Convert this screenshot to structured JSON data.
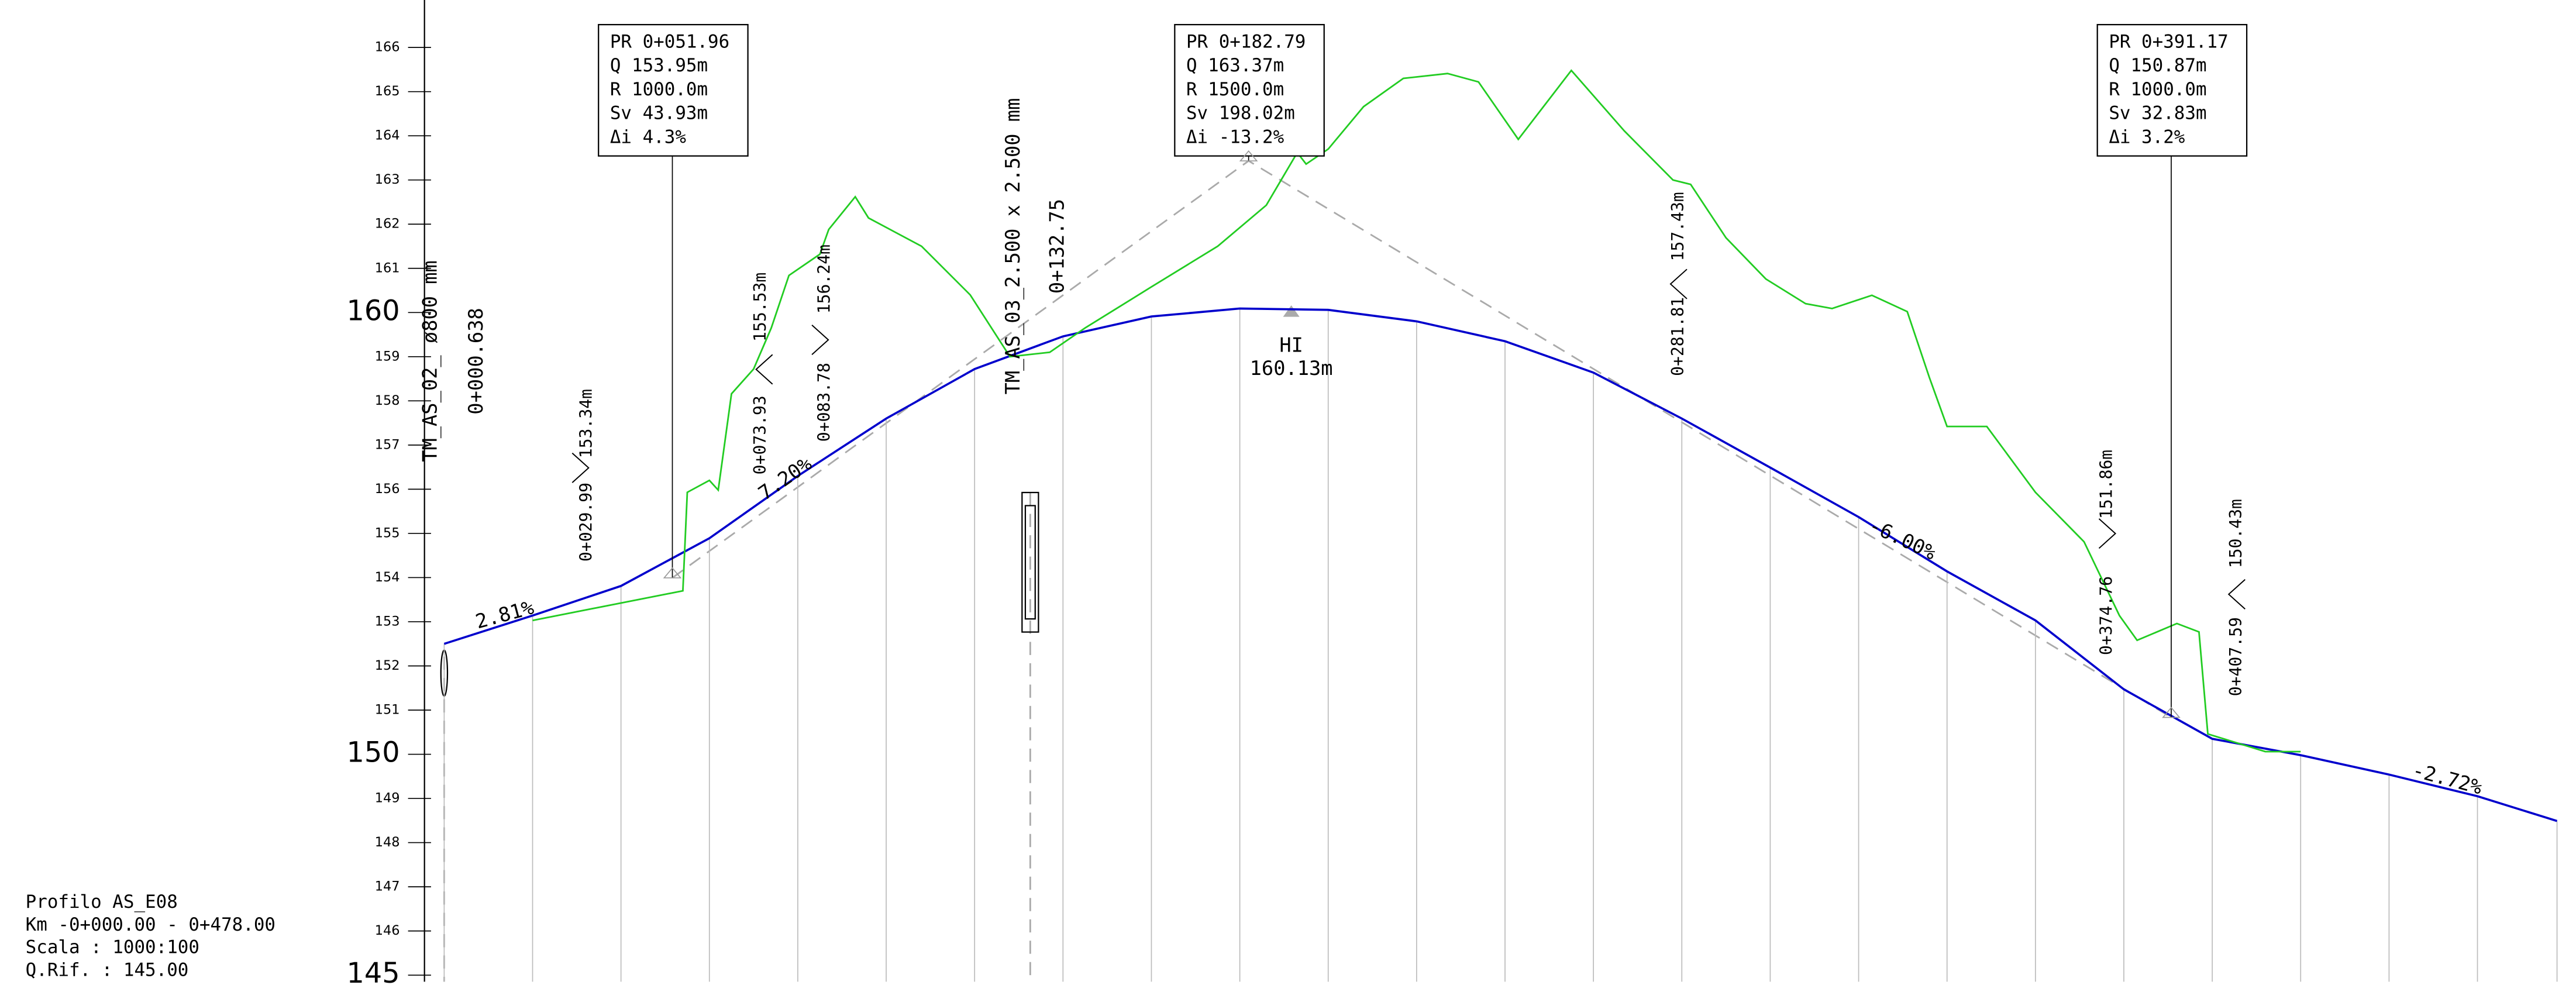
{
  "chart_data": {
    "type": "line",
    "ylim": [
      145,
      167
    ],
    "yticks": [
      145,
      146,
      147,
      148,
      149,
      150,
      151,
      152,
      153,
      154,
      155,
      156,
      157,
      158,
      159,
      160,
      161,
      162,
      163,
      164,
      165,
      166
    ],
    "xlim": [
      0,
      478
    ],
    "series": [
      {
        "name": "profile",
        "color": "#0000cc",
        "x": [
          0,
          20,
          40,
          60,
          80,
          100,
          120,
          140,
          160,
          180,
          200,
          220,
          240,
          260,
          280,
          300,
          320,
          340,
          360,
          380,
          400,
          420,
          440,
          460,
          478
        ],
        "values": [
          152.5,
          153.14,
          153.81,
          154.89,
          156.3,
          157.6,
          158.72,
          159.46,
          159.91,
          160.09,
          160.06,
          159.8,
          159.35,
          158.64,
          157.6,
          156.49,
          155.37,
          154.14,
          153.03,
          151.47,
          150.35,
          149.98,
          149.54,
          149.05,
          148.49
        ]
      },
      {
        "name": "ground",
        "color": "#22cc22",
        "x": [
          20,
          54,
          55,
          60,
          62,
          65,
          70,
          74,
          78,
          85,
          87,
          93,
          96,
          108,
          119,
          128,
          137,
          145,
          160,
          175,
          186,
          193,
          195,
          200,
          208,
          217,
          227,
          234,
          243,
          255,
          267,
          278,
          282,
          290,
          299,
          308,
          314,
          323,
          331,
          336,
          340,
          349,
          360,
          371,
          379,
          383,
          392,
          397,
          399,
          412,
          420
        ],
        "values": [
          153.03,
          153.7,
          155.93,
          156.2,
          155.98,
          158.16,
          158.72,
          159.65,
          160.84,
          161.32,
          161.88,
          162.62,
          162.14,
          161.5,
          160.4,
          159.0,
          159.1,
          159.65,
          160.58,
          161.5,
          162.43,
          163.62,
          163.36,
          163.7,
          164.66,
          165.3,
          165.41,
          165.22,
          163.92,
          165.48,
          164.11,
          163.0,
          162.9,
          161.69,
          160.76,
          160.2,
          160.09,
          160.39,
          160.02,
          158.53,
          157.42,
          157.42,
          155.93,
          154.81,
          153.14,
          152.58,
          152.96,
          152.77,
          150.46,
          150.06,
          150.06
        ]
      }
    ],
    "curves": [
      [
        "PR 0+051.96",
        "Q  153.95m",
        "R  1000.0m",
        "Sv 43.93m",
        "Δi 4.3%"
      ],
      [
        "PR 0+182.79",
        "Q  163.37m",
        "R  1500.0m",
        "Sv 198.02m",
        "Δi -13.2%"
      ],
      [
        "PR 0+391.17",
        "Q  150.87m",
        "R  1000.0m",
        "Sv 32.83m",
        "Δi 3.2%"
      ]
    ],
    "slopes": [
      "2.81%",
      "7.20%",
      "-6.00%",
      "-2.72%"
    ],
    "stations": [
      "TM_AS_02_ ø800  mm",
      "0+000.638",
      "0+029.99",
      "153.34m",
      "0+073.93",
      "155.53m",
      "0+083.78",
      "156.24m",
      "TM_AS_03_2.500  x  2.500  mm",
      "0+132.75",
      "0+281.81",
      "157.43m",
      "0+374.76",
      "151.86m",
      "0+407.59",
      "150.43m"
    ],
    "high_point": {
      "label": "HI",
      "elevation": "160.13m"
    },
    "footer": [
      "Profilo AS_E08",
      "Km -0+000.00 - 0+478.00",
      "Scala : 1000:100",
      "Q.Rif. : 145.00"
    ]
  }
}
